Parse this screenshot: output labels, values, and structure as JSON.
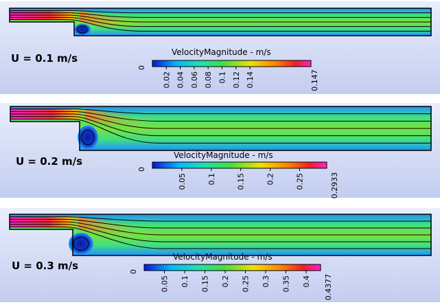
{
  "scale_title": "VelocityMagnitude  -  m/s",
  "panels": [
    {
      "label": "U = 0.1 m/s",
      "ticks": [
        "0",
        "0.02",
        "0.04",
        "0.06",
        "0.08",
        "0.1",
        "0.12",
        "0.14"
      ],
      "max_label": "0.147"
    },
    {
      "label": "U = 0.2 m/s",
      "ticks": [
        "0",
        "0.05",
        "0.1",
        "0.15",
        "0.2",
        "0.25"
      ],
      "max_label": "0.2933"
    },
    {
      "label": "U = 0.3 m/s",
      "ticks": [
        "0",
        "0.05",
        "0.1",
        "0.15",
        "0.2",
        "0.25",
        "0.3",
        "0.35",
        "0.4"
      ],
      "max_label": "0.4377"
    }
  ],
  "colors": {
    "panel_top": "#e9eefb",
    "panel_bottom": "#c3cdf0",
    "scale": [
      "#1010e0",
      "#00b8ff",
      "#20e0b0",
      "#40e040",
      "#f0e000",
      "#ff8000",
      "#f02020",
      "#ff20d0"
    ]
  }
}
